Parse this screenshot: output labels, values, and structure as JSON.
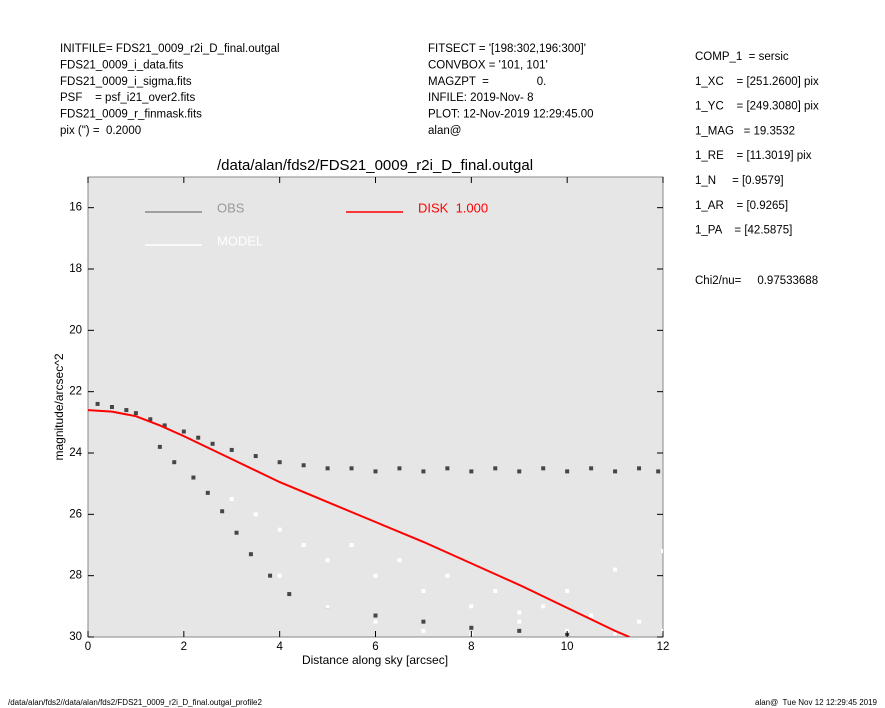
{
  "header": {
    "left": [
      "INITFILE= FDS21_0009_r2i_D_final.outgal",
      "FDS21_0009_i_data.fits",
      "FDS21_0009_i_sigma.fits",
      "PSF    = psf_i21_over2.fits",
      "FDS21_0009_r_finmask.fits",
      "pix (\") =  0.2000"
    ],
    "middle": [
      "FITSECT = '[198:302,196:300]'",
      "CONVBOX = '101, 101'",
      "MAGZPT  =               0.",
      "INFILE: 2019-Nov- 8",
      "PLOT: 12-Nov-2019 12:29:45.00",
      "alan@"
    ],
    "right": [
      "COMP_1  = sersic",
      "1_XC    = [251.2600] pix",
      "1_YC    = [249.3080] pix",
      "1_MAG   = 19.3532",
      "1_RE    = [11.3019] pix",
      "1_N     = [0.9579]",
      "1_AR    = [0.9265]",
      "1_PA    = [42.5875]"
    ],
    "chi2": "Chi2/nu=     0.97533688"
  },
  "footer": {
    "left": "/data/alan/fds2//data/alan/fds2/FDS21_0009_r2i_D_final.outgal_profile2",
    "right": "alan@  Tue Nov 12 12:29:45 2019"
  },
  "chart_data": {
    "type": "scatter",
    "title": "/data/alan/fds2/FDS21_0009_r2i_D_final.outgal",
    "xlabel": "Distance along sky [arcsec]",
    "ylabel": "magnitude/arcsec^2",
    "xlim": [
      0,
      12
    ],
    "ylim": [
      15,
      30
    ],
    "y_inverted": true,
    "xticks": [
      0,
      2,
      4,
      6,
      8,
      10,
      12
    ],
    "yticks": [
      16,
      18,
      20,
      22,
      24,
      26,
      28,
      30
    ],
    "series": [
      {
        "name": "OBS",
        "type": "scatter",
        "color": "#464646",
        "x": [
          0.2,
          0.5,
          0.8,
          1.0,
          1.3,
          1.6,
          2.0,
          2.3,
          2.6,
          3.0,
          3.5,
          4.0,
          4.5,
          5.0,
          5.5,
          6,
          6.5,
          7,
          7.5,
          8,
          8.5,
          9,
          9.5,
          10,
          10.5,
          11,
          11.5,
          11.9,
          1.5,
          1.8,
          2.2,
          2.5,
          2.8,
          3.1,
          3.4,
          3.8,
          4.2,
          5,
          6,
          7,
          8,
          9,
          10,
          11
        ],
        "values": [
          22.4,
          22.5,
          22.6,
          22.7,
          22.9,
          23.1,
          23.3,
          23.5,
          23.7,
          23.9,
          24.1,
          24.3,
          24.4,
          24.5,
          24.5,
          24.6,
          24.5,
          24.6,
          24.5,
          24.6,
          24.5,
          24.6,
          24.5,
          24.6,
          24.5,
          24.6,
          24.5,
          24.6,
          23.8,
          24.3,
          24.8,
          25.3,
          25.9,
          26.6,
          27.3,
          28,
          28.6,
          29,
          29.3,
          29.5,
          29.7,
          29.8,
          29.9,
          29.9
        ]
      },
      {
        "name": "MODEL",
        "type": "scatter",
        "color": "#ffffff",
        "x": [
          3,
          3.5,
          4,
          4.5,
          5,
          5.5,
          6,
          6.5,
          7,
          7.5,
          8,
          8.5,
          9,
          9.5,
          10,
          10.5,
          11,
          11.5,
          12,
          4,
          5,
          6,
          7,
          8,
          9,
          10,
          11,
          12
        ],
        "values": [
          25.5,
          26,
          26.5,
          27,
          27.5,
          27,
          28,
          27.5,
          28.5,
          28,
          29,
          28.5,
          29.5,
          29,
          29.8,
          29.3,
          29.9,
          29.5,
          29.8,
          28,
          29,
          29.5,
          29.8,
          29.9,
          29.2,
          28.5,
          27.8,
          27.2
        ]
      },
      {
        "name": "DISK  1.000",
        "type": "line",
        "color": "#ff0000",
        "x": [
          0,
          0.5,
          1,
          1.5,
          2,
          3,
          4,
          5,
          6,
          7,
          8,
          9,
          10,
          11,
          11.3
        ],
        "values": [
          22.6,
          22.65,
          22.8,
          23.1,
          23.45,
          24.2,
          24.95,
          25.6,
          26.25,
          26.9,
          27.6,
          28.3,
          29.05,
          29.8,
          30
        ]
      }
    ]
  }
}
